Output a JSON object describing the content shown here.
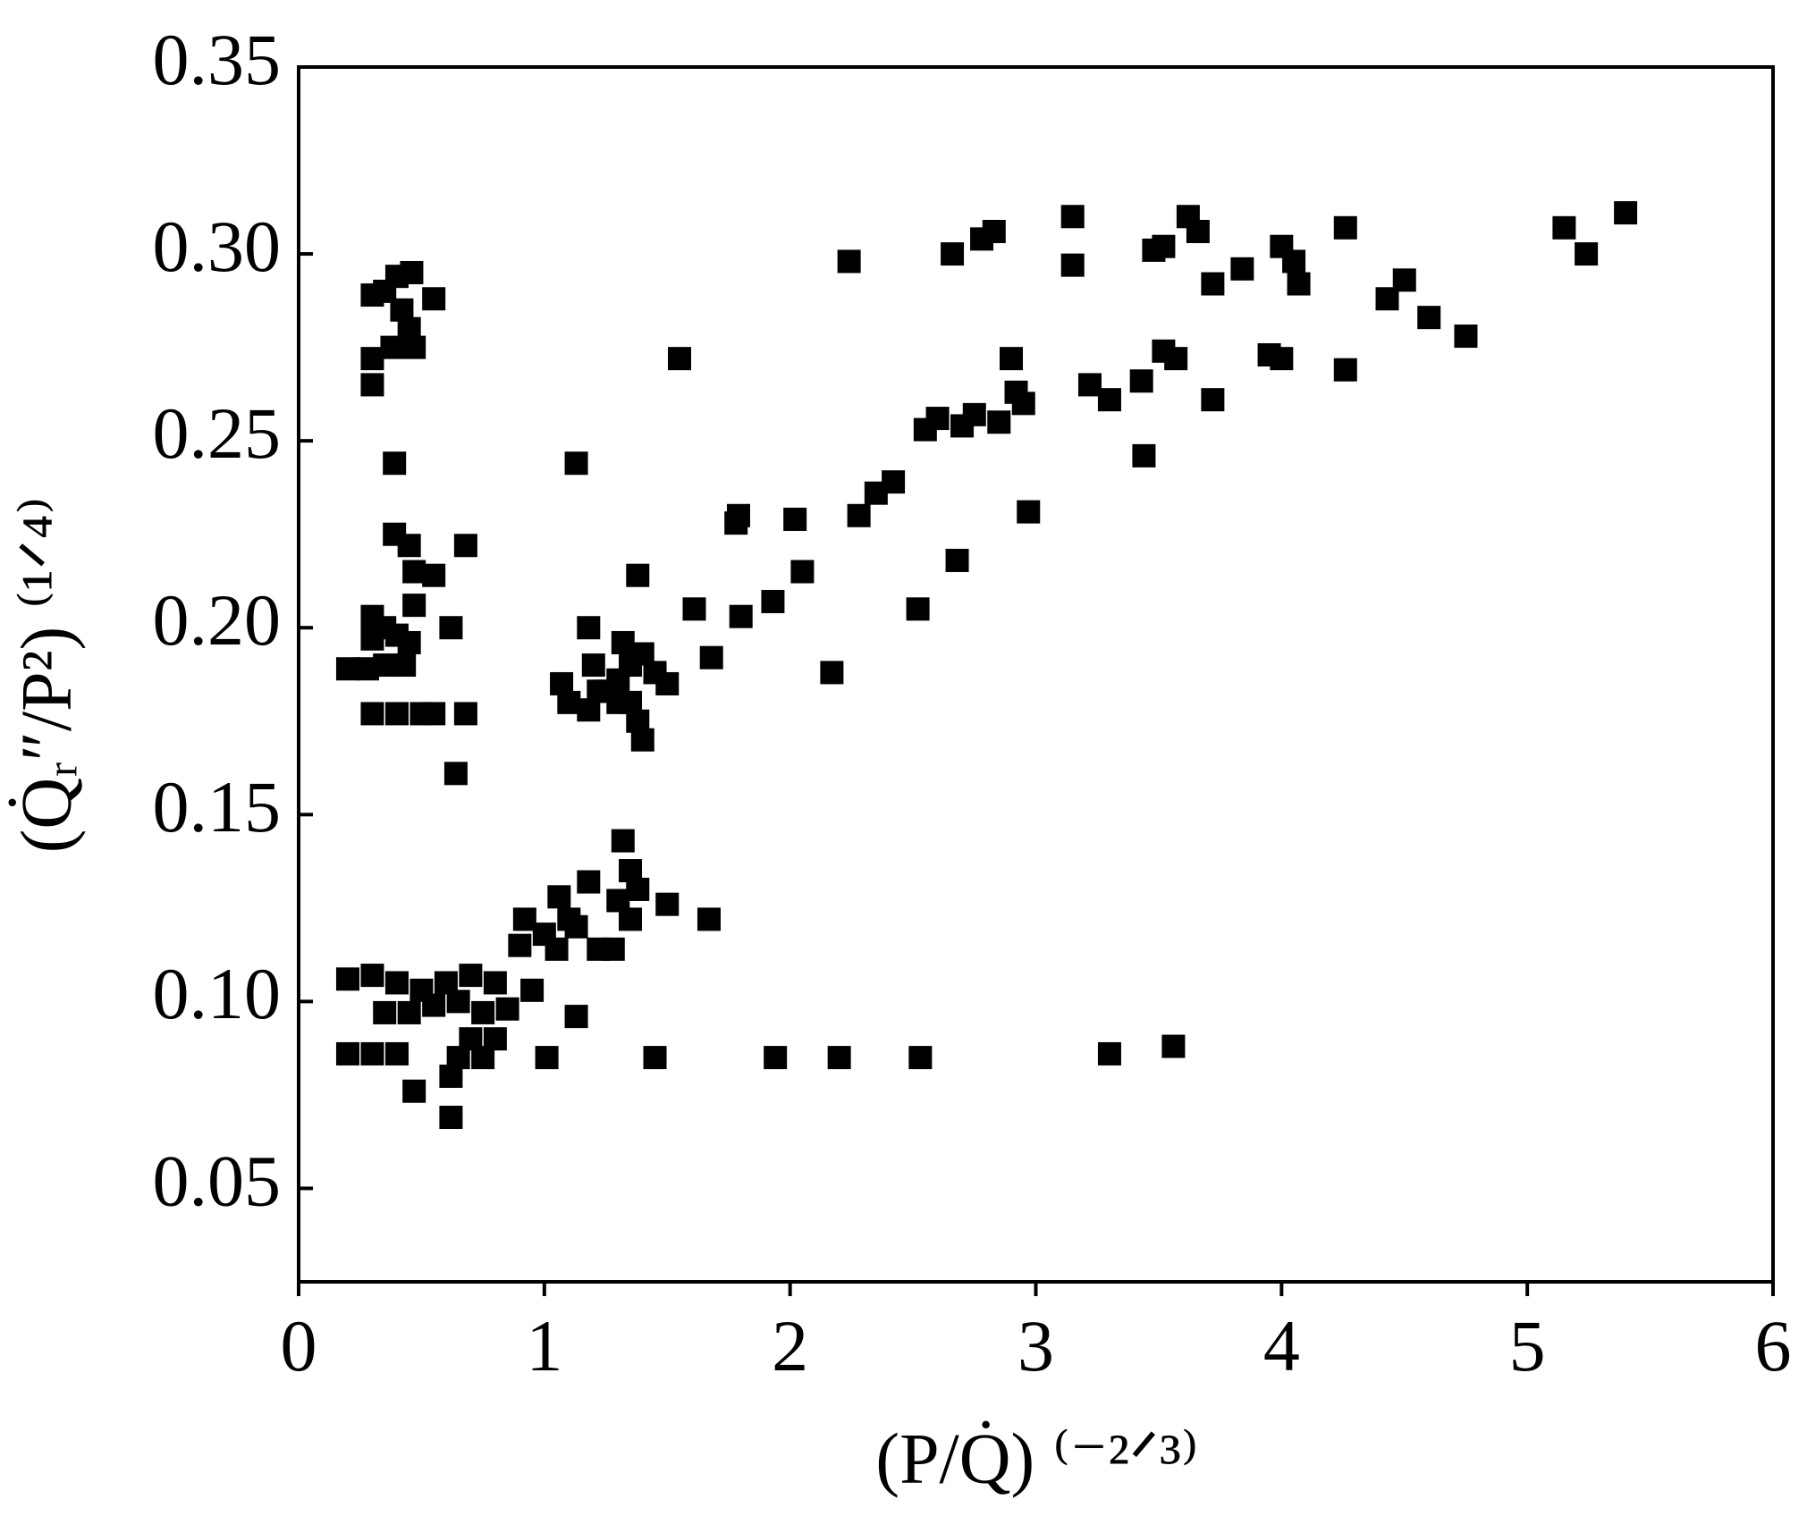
{
  "chart_data": {
    "type": "scatter",
    "x_label": "(P/Q̇) ⁽⁻²ᐟ³⁾",
    "y_label": "(Q̇ᵣ″/P²) ⁽¹ᐟ⁴⁾",
    "xlim": [
      0,
      6
    ],
    "ylim": [
      0.025,
      0.35
    ],
    "xticks": [
      0,
      1,
      2,
      3,
      4,
      5,
      6
    ],
    "yticks": [
      0.05,
      {
        "value": 0.1,
        "label": "0.10"
      },
      0.15,
      {
        "value": 0.2,
        "label": "0.20"
      },
      0.25,
      {
        "value": 0.3,
        "label": "0.30"
      },
      0.35
    ],
    "color": "#000000",
    "x": [
      0.3,
      0.35,
      0.4,
      0.46,
      0.55,
      0.3,
      0.3,
      0.38,
      0.45,
      0.47,
      0.42,
      0.39,
      0.39,
      0.45,
      0.47,
      0.55,
      0.68,
      0.47,
      0.62,
      0.3,
      0.3,
      0.35,
      0.4,
      0.45,
      0.2,
      0.28,
      0.35,
      0.43,
      0.3,
      0.4,
      0.5,
      0.55,
      0.68,
      0.64,
      1.13,
      1.18,
      1.07,
      1.1,
      1.18,
      1.2,
      1.25,
      1.3,
      1.32,
      1.35,
      1.38,
      1.4,
      1.38,
      1.4,
      1.45,
      1.5,
      1.35,
      1.3,
      1.22,
      1.55,
      1.61,
      1.68,
      1.78,
      1.79,
      1.8,
      1.93,
      2.02,
      2.05,
      2.17,
      2.24,
      2.28,
      2.35,
      2.42,
      2.52,
      2.55,
      2.6,
      2.66,
      2.68,
      2.7,
      2.75,
      2.78,
      2.83,
      2.85,
      2.9,
      2.92,
      2.95,
      2.97,
      3.15,
      3.15,
      3.22,
      3.3,
      3.43,
      3.44,
      3.48,
      3.52,
      3.52,
      3.57,
      3.62,
      3.66,
      3.72,
      3.72,
      3.84,
      3.95,
      4.0,
      4.0,
      4.05,
      4.07,
      4.26,
      4.26,
      4.43,
      4.5,
      4.6,
      4.75,
      5.15,
      5.24,
      5.4,
      0.2,
      0.3,
      0.4,
      0.5,
      0.6,
      0.7,
      0.8,
      0.35,
      0.45,
      0.55,
      0.65,
      0.75,
      0.85,
      0.95,
      0.7,
      0.8,
      0.65,
      0.75,
      0.62,
      0.62,
      0.47,
      0.2,
      0.3,
      0.4,
      0.9,
      0.92,
      1.0,
      1.05,
      1.06,
      1.1,
      1.13,
      1.18,
      1.13,
      1.22,
      1.28,
      1.3,
      1.32,
      1.35,
      1.35,
      1.38,
      1.5,
      1.67,
      1.01,
      1.45,
      1.94,
      2.2,
      2.53,
      3.3,
      3.56
    ],
    "y": [
      0.289,
      0.29,
      0.294,
      0.295,
      0.288,
      0.272,
      0.265,
      0.275,
      0.28,
      0.275,
      0.285,
      0.244,
      0.225,
      0.222,
      0.215,
      0.214,
      0.222,
      0.206,
      0.2,
      0.203,
      0.197,
      0.2,
      0.198,
      0.196,
      0.189,
      0.189,
      0.19,
      0.19,
      0.177,
      0.177,
      0.177,
      0.177,
      0.177,
      0.161,
      0.244,
      0.2,
      0.185,
      0.18,
      0.178,
      0.19,
      0.183,
      0.186,
      0.196,
      0.18,
      0.175,
      0.17,
      0.214,
      0.193,
      0.188,
      0.185,
      0.19,
      0.18,
      0.183,
      0.272,
      0.205,
      0.192,
      0.228,
      0.23,
      0.203,
      0.207,
      0.229,
      0.215,
      0.188,
      0.298,
      0.23,
      0.236,
      0.239,
      0.205,
      0.253,
      0.256,
      0.3,
      0.218,
      0.254,
      0.257,
      0.304,
      0.306,
      0.255,
      0.272,
      0.263,
      0.26,
      0.231,
      0.31,
      0.297,
      0.265,
      0.261,
      0.266,
      0.246,
      0.301,
      0.302,
      0.274,
      0.272,
      0.31,
      0.306,
      0.292,
      0.261,
      0.296,
      0.273,
      0.302,
      0.272,
      0.298,
      0.292,
      0.307,
      0.269,
      0.288,
      0.293,
      0.283,
      0.278,
      0.307,
      0.3,
      0.311,
      0.106,
      0.107,
      0.105,
      0.103,
      0.105,
      0.107,
      0.105,
      0.097,
      0.097,
      0.099,
      0.1,
      0.097,
      0.098,
      0.103,
      0.09,
      0.09,
      0.085,
      0.085,
      0.08,
      0.069,
      0.076,
      0.086,
      0.086,
      0.086,
      0.115,
      0.122,
      0.118,
      0.114,
      0.128,
      0.122,
      0.12,
      0.132,
      0.096,
      0.114,
      0.114,
      0.127,
      0.143,
      0.135,
      0.122,
      0.13,
      0.126,
      0.122,
      0.085,
      0.085,
      0.085,
      0.085,
      0.085,
      0.086,
      0.088
    ]
  }
}
